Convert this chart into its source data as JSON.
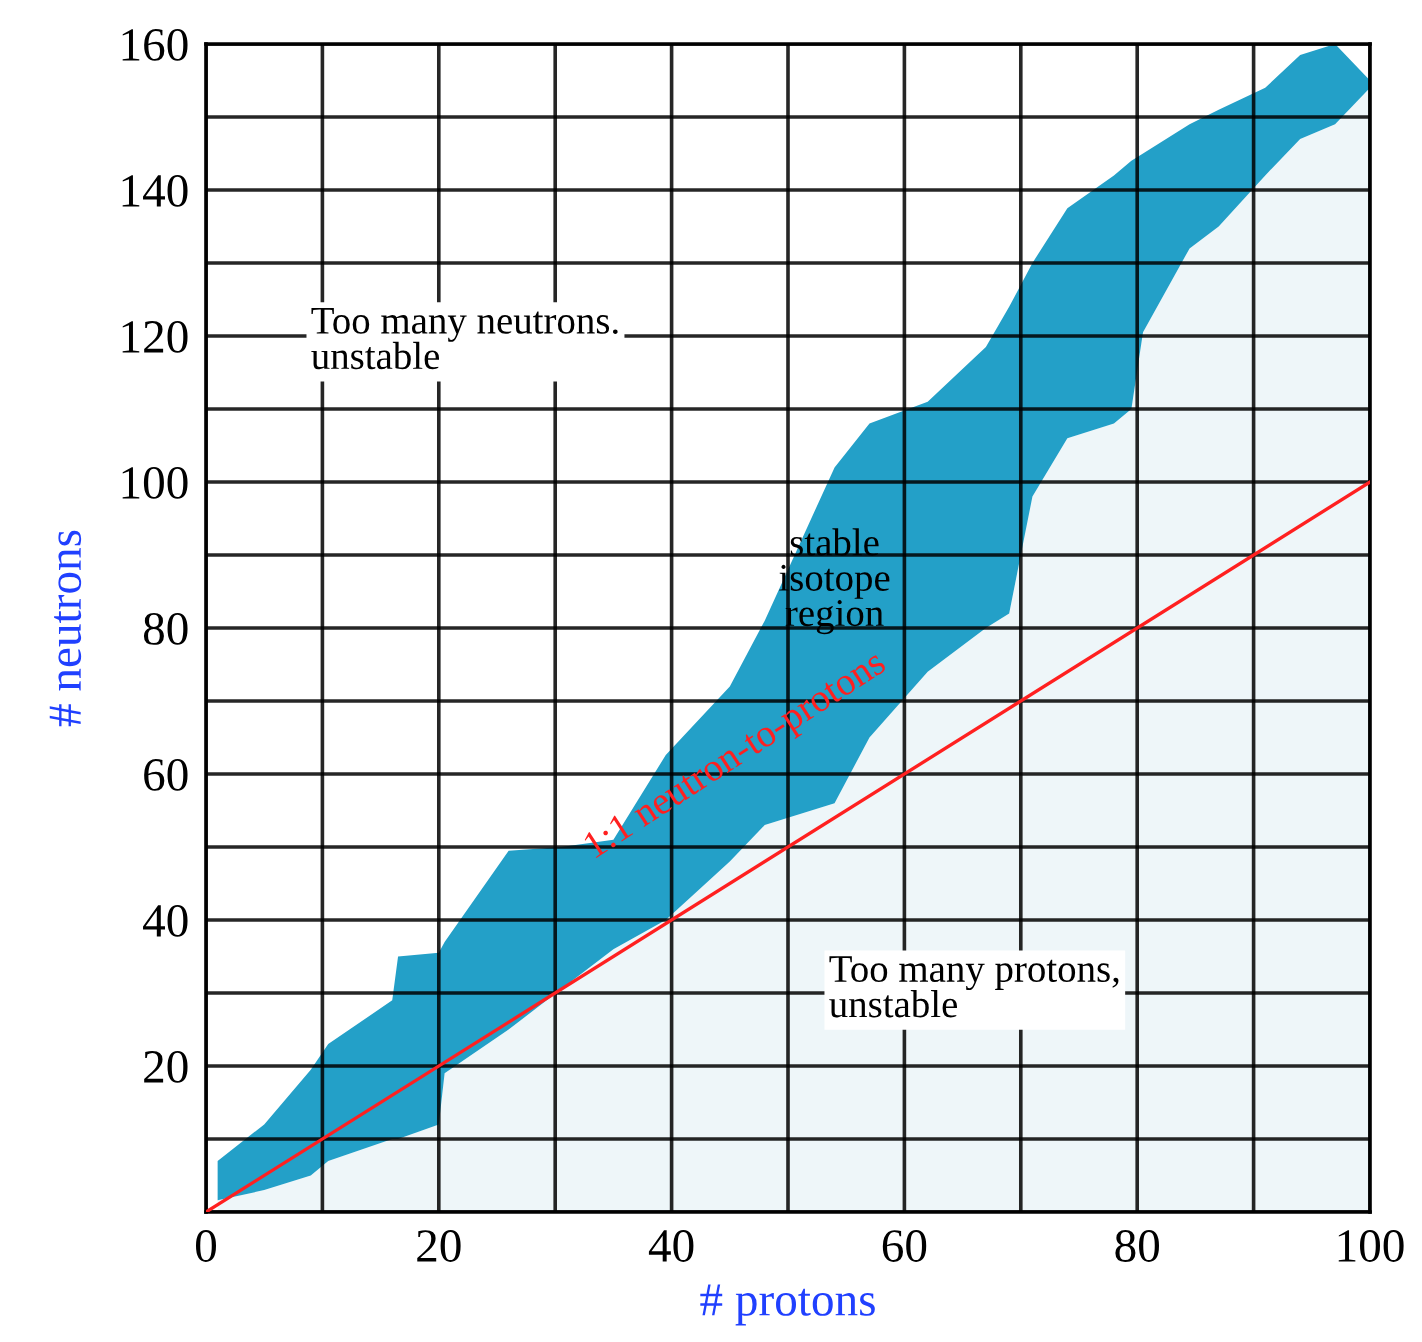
{
  "chart_data": {
    "type": "area",
    "stacked": true,
    "xlabel": "# protons",
    "ylabel": "# neutrons",
    "xlim": [
      0,
      100
    ],
    "ylim": [
      0,
      160
    ],
    "xticks": [
      0,
      {
        "value": 10,
        "label": null
      },
      20,
      {
        "value": 30,
        "label": null
      },
      40,
      {
        "value": 50,
        "label": null
      },
      60,
      {
        "value": 70,
        "label": null
      },
      80,
      {
        "value": 90,
        "label": null
      },
      100
    ],
    "yticks": [
      {
        "value": 0,
        "label": null
      },
      {
        "value": 10,
        "label": null
      },
      20,
      {
        "value": 30,
        "label": null
      },
      40,
      {
        "value": 50,
        "label": null
      },
      60,
      {
        "value": 70,
        "label": null
      },
      80,
      {
        "value": 90,
        "label": null
      },
      100,
      {
        "value": 110,
        "label": null
      },
      120,
      {
        "value": 130,
        "label": null
      },
      140,
      {
        "value": 150,
        "label": null
      },
      160
    ],
    "grid": true,
    "series": [
      {
        "color": "#eef6f9",
        "x": [
          1,
          5,
          9,
          10.5,
          16,
          16.5,
          20,
          20.5,
          26,
          30.5,
          35,
          39.5,
          45,
          48,
          54,
          57,
          62,
          67,
          69,
          71,
          74,
          78,
          79.5,
          80.5,
          84.5,
          87,
          91,
          94,
          97,
          100
        ],
        "values": [
          1.6,
          3,
          5,
          7,
          10,
          10,
          12,
          19,
          25,
          30.5,
          36,
          40,
          48,
          53,
          56,
          65,
          74,
          80,
          82,
          98,
          106,
          108,
          110,
          120.5,
          132,
          135,
          142,
          147,
          149,
          154
        ]
      },
      {
        "color": "#23a0c8",
        "x": [
          1,
          5,
          9,
          10.5,
          16,
          16.5,
          20,
          20.5,
          26,
          30.5,
          35,
          39.5,
          45,
          48,
          54,
          57,
          62,
          67,
          69,
          71,
          74,
          78,
          79.5,
          80.5,
          84.5,
          87,
          91,
          94,
          97,
          100
        ],
        "values": [
          5.4,
          9,
          14.5,
          16,
          19,
          25,
          23.5,
          18,
          24.5,
          19.5,
          15,
          22.6,
          24,
          28,
          46,
          43,
          37,
          38.5,
          42,
          32,
          31.5,
          34,
          34,
          24.5,
          17,
          16,
          12,
          11.5,
          11,
          1
        ]
      },
      {
        "type": "line",
        "color": "#ff2020",
        "x": [
          0,
          100
        ],
        "values": [
          0,
          100
        ]
      }
    ],
    "annotations": [
      "Too many neutrons. unstable",
      "stable isotope region",
      "1:1 neutron-to-protons",
      "Too many protons, unstable"
    ]
  }
}
